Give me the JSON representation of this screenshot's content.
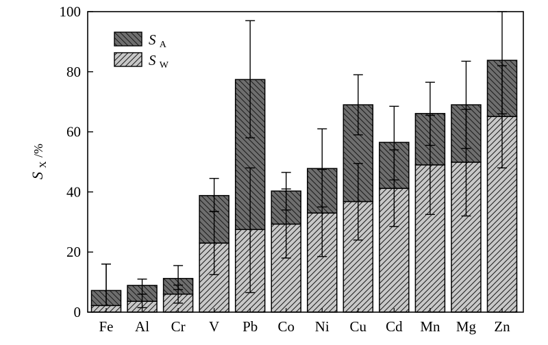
{
  "chart_data": {
    "type": "bar",
    "stacked": true,
    "categories": [
      "Fe",
      "Al",
      "Cr",
      "V",
      "Pb",
      "Co",
      "Ni",
      "Cu",
      "Cd",
      "Mn",
      "Mg",
      "Zn"
    ],
    "series": [
      {
        "name": "S_W",
        "legend_main": "S",
        "legend_sub": "W",
        "values": [
          2.2,
          3.6,
          6.0,
          23.0,
          27.5,
          29.3,
          33.0,
          36.8,
          41.2,
          49.0,
          49.9,
          65.1
        ],
        "error": [
          [
            2.2,
            16.0
          ],
          [
            1.5,
            6.0
          ],
          [
            3.0,
            9.0
          ],
          [
            12.5,
            33.5
          ],
          [
            6.5,
            48.0
          ],
          [
            18.0,
            41.0
          ],
          [
            18.5,
            47.5
          ],
          [
            24.0,
            49.5
          ],
          [
            28.5,
            54.0
          ],
          [
            32.5,
            65.5
          ],
          [
            32.0,
            67.5
          ],
          [
            48.0,
            82.0
          ]
        ],
        "fill": "#c8c8c8"
      },
      {
        "name": "S_A",
        "legend_main": "S",
        "legend_sub": "A",
        "values": [
          5.0,
          5.3,
          5.2,
          15.8,
          49.9,
          11.0,
          14.8,
          32.2,
          15.3,
          17.1,
          19.1,
          18.7
        ],
        "error": [
          [
            2.2,
            16.0
          ],
          [
            6.0,
            11.0
          ],
          [
            7.5,
            15.5
          ],
          [
            33.5,
            44.5
          ],
          [
            58.0,
            97.0
          ],
          [
            34.0,
            46.5
          ],
          [
            35.0,
            61.0
          ],
          [
            59.0,
            79.0
          ],
          [
            44.0,
            68.5
          ],
          [
            55.5,
            76.5
          ],
          [
            54.5,
            83.5
          ],
          [
            66.0,
            100.0
          ]
        ],
        "fill": "#6e6e6e"
      }
    ],
    "ylim": [
      0,
      100
    ],
    "yticks": [
      0,
      20,
      40,
      60,
      80,
      100
    ],
    "ylabel_main": "S",
    "ylabel_sub": "X",
    "ylabel_suffix": "/%",
    "xlabel": "",
    "title": "",
    "legend_position": "top-left"
  }
}
